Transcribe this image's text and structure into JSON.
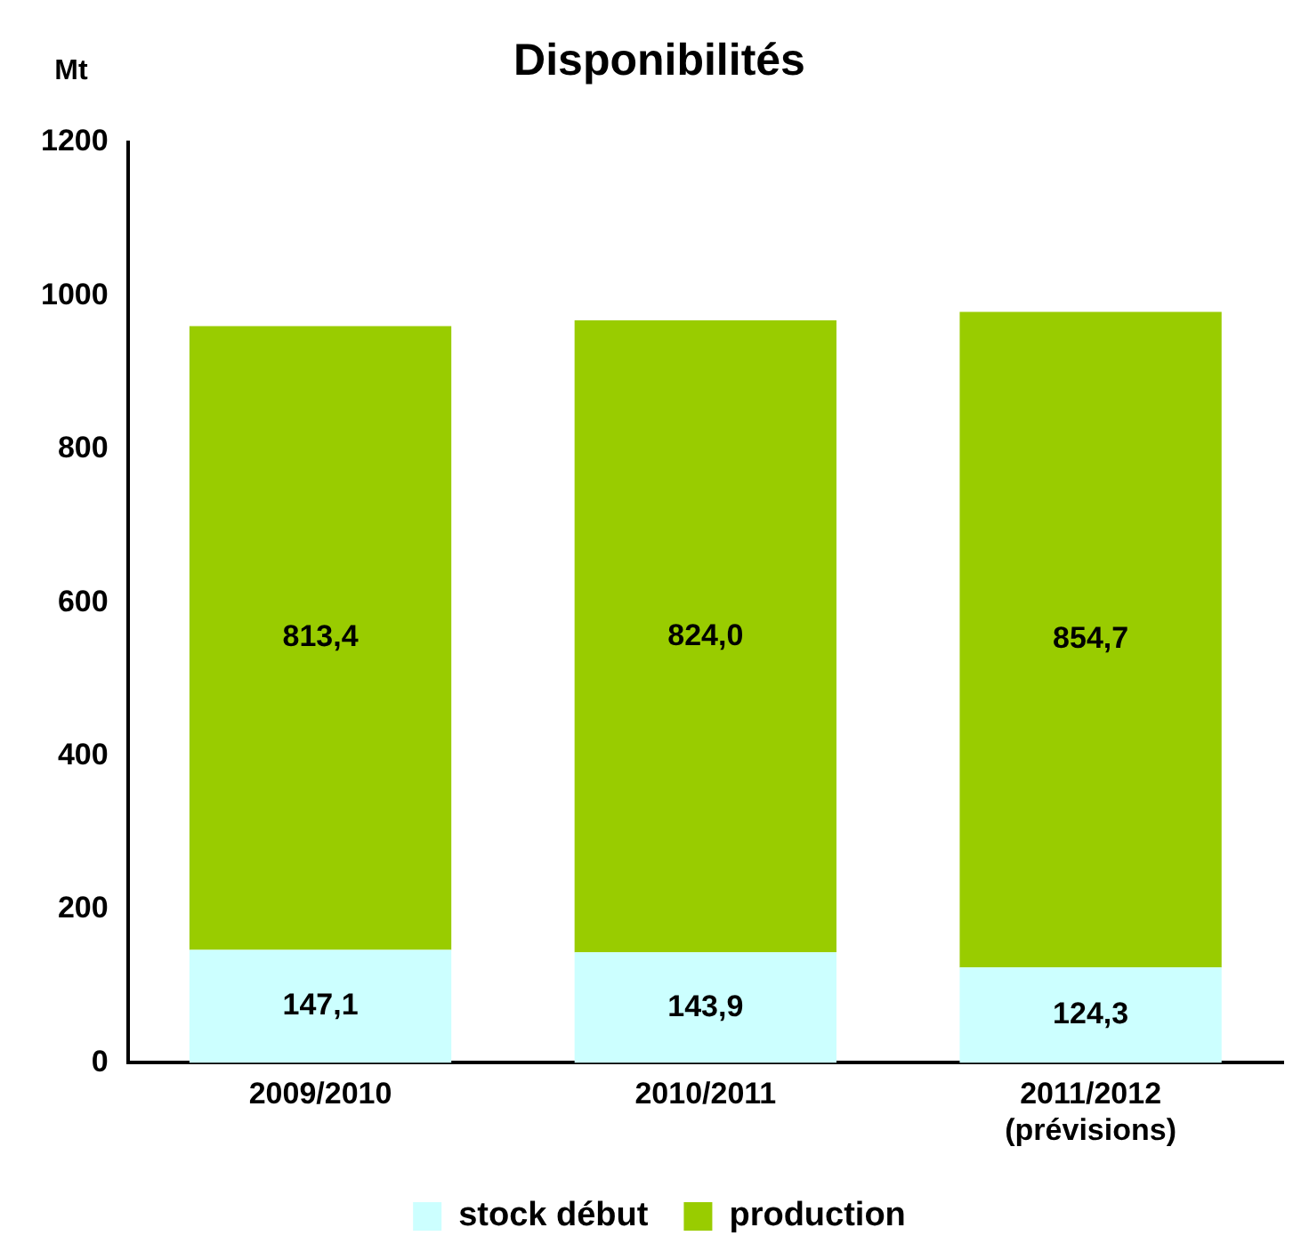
{
  "chart_data": {
    "type": "bar",
    "title": "Disponibilités",
    "ylabel": "Mt",
    "stacked": true,
    "categories": [
      "2009/2010",
      "2010/2011",
      "2011/2012\n(prévisions)"
    ],
    "series": [
      {
        "name": "stock début",
        "color": "#ccffff",
        "values": [
          147.1,
          143.9,
          124.3
        ],
        "value_labels": [
          "147,1",
          "143,9",
          "124,3"
        ]
      },
      {
        "name": "production",
        "color": "#99cc00",
        "values": [
          813.4,
          824.0,
          854.7
        ],
        "value_labels": [
          "813,4",
          "824,0",
          "854,7"
        ]
      }
    ],
    "ylim": [
      0,
      1200
    ],
    "yticks": [
      0,
      200,
      400,
      600,
      800,
      1000,
      1200
    ],
    "grid": false,
    "legend": "bottom"
  }
}
